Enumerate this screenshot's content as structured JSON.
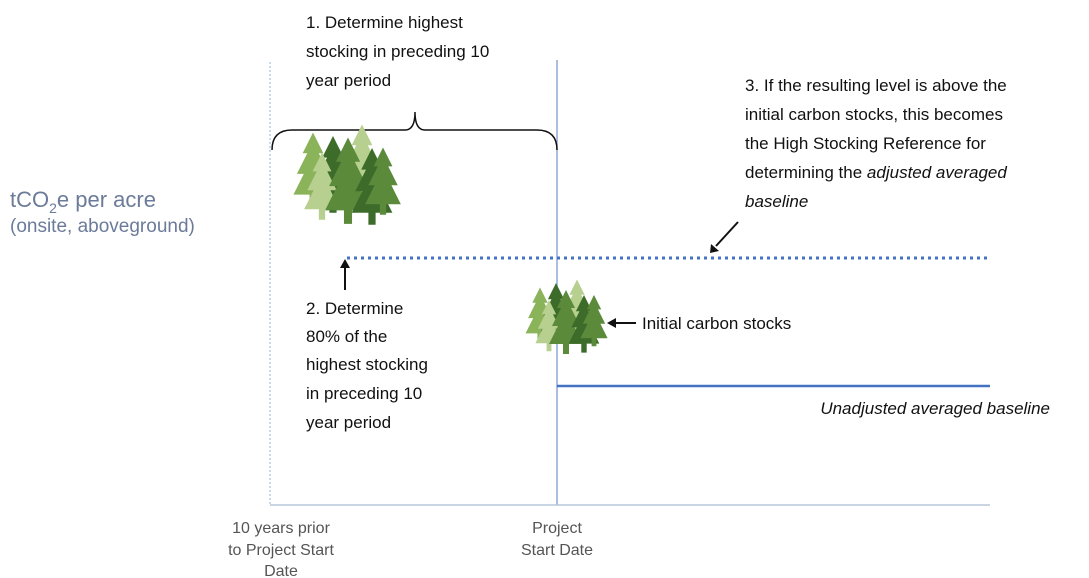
{
  "y_axis": {
    "label_parts": [
      "tCO",
      "2",
      "e per acre"
    ],
    "sublabel": "(onsite, aboveground)"
  },
  "step1": {
    "lines": [
      "1. Determine highest",
      "stocking in preceding 10",
      "year period"
    ]
  },
  "step2": {
    "lines": [
      "2. Determine",
      "80% of the",
      "highest stocking",
      "in preceding 10",
      "year period"
    ]
  },
  "step3": {
    "lines": [
      "3. If the resulting level is above the",
      "initial carbon stocks, this becomes",
      "the High Stocking Reference for"
    ],
    "line4": [
      "determining the",
      "adjusted averaged"
    ],
    "line5": "baseline"
  },
  "initial_label": "Initial carbon stocks",
  "baseline_label": "Unadjusted averaged baseline",
  "x_labels": {
    "left": [
      "10 years prior",
      "to Project Start",
      "Date"
    ],
    "right": [
      "Project",
      "Start Date"
    ]
  }
}
